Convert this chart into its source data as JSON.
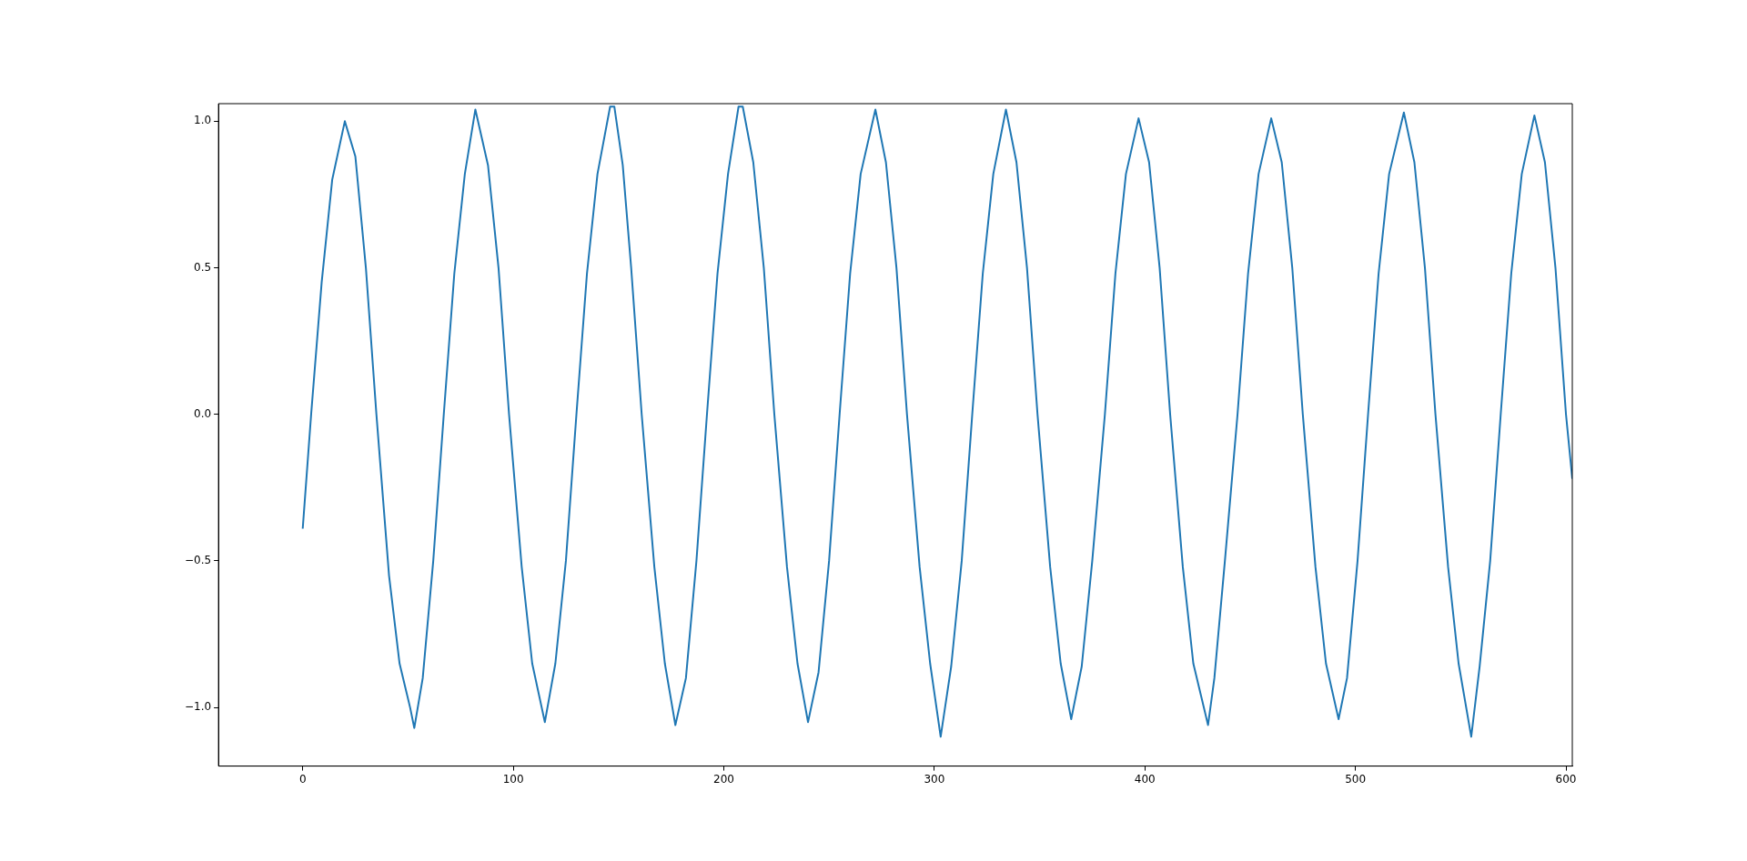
{
  "chart_data": {
    "type": "line",
    "x": [
      0,
      4,
      9,
      14,
      20,
      25,
      30,
      35,
      41,
      46,
      51,
      53,
      57,
      62,
      67,
      72,
      77,
      82,
      88,
      93,
      98,
      104,
      109,
      115,
      120,
      125,
      130,
      135,
      140,
      146,
      147,
      148,
      152,
      156,
      161,
      167,
      172,
      177,
      182,
      187,
      192,
      197,
      202,
      207,
      208,
      209,
      214,
      219,
      224,
      230,
      235,
      240,
      245,
      250,
      255,
      260,
      265,
      272,
      277,
      282,
      287,
      293,
      298,
      303,
      308,
      313,
      318,
      323,
      328,
      334,
      339,
      344,
      349,
      355,
      360,
      365,
      370,
      375,
      381,
      386,
      391,
      397,
      402,
      407,
      412,
      418,
      423,
      430,
      433,
      438,
      444,
      449,
      454,
      460,
      465,
      470,
      475,
      481,
      486,
      492,
      496,
      501,
      506,
      511,
      516,
      523,
      528,
      533,
      538,
      544,
      549,
      555,
      559,
      564,
      569,
      574,
      579,
      585,
      590,
      595,
      600,
      603
    ],
    "series": [
      {
        "color": "#1f77b4",
        "values": [
          -0.39,
          0.0,
          0.45,
          0.8,
          1.0,
          0.88,
          0.5,
          0.0,
          -0.55,
          -0.85,
          -1.0,
          -1.07,
          -0.9,
          -0.5,
          0.0,
          0.48,
          0.82,
          1.04,
          0.85,
          0.5,
          0.0,
          -0.52,
          -0.85,
          -1.05,
          -0.85,
          -0.5,
          0.0,
          0.48,
          0.82,
          1.05,
          null,
          1.05,
          0.85,
          0.5,
          0.0,
          -0.52,
          -0.85,
          -1.06,
          -0.9,
          -0.5,
          0.0,
          0.48,
          0.82,
          1.05,
          null,
          1.05,
          0.86,
          0.5,
          0.0,
          -0.52,
          -0.85,
          -1.05,
          -0.88,
          -0.5,
          0.0,
          0.48,
          0.82,
          1.04,
          0.86,
          0.5,
          0.0,
          -0.52,
          -0.85,
          -1.1,
          -0.86,
          -0.5,
          0.0,
          0.48,
          0.82,
          1.04,
          0.86,
          0.5,
          0.0,
          -0.52,
          -0.85,
          -1.04,
          -0.86,
          -0.5,
          0.0,
          0.48,
          0.82,
          1.01,
          0.86,
          0.5,
          0.0,
          -0.52,
          -0.85,
          -1.06,
          -0.9,
          -0.5,
          0.0,
          0.48,
          0.82,
          1.01,
          0.86,
          0.5,
          0.0,
          -0.52,
          -0.85,
          -1.04,
          -0.9,
          -0.5,
          0.0,
          0.48,
          0.82,
          1.03,
          0.86,
          0.5,
          0.0,
          -0.52,
          -0.85,
          -1.1,
          -0.86,
          -0.5,
          0.0,
          0.48,
          0.82,
          1.02,
          0.86,
          0.5,
          0.0,
          -0.22
        ]
      }
    ],
    "xlim": [
      -40,
      603
    ],
    "ylim": [
      -1.2,
      1.06
    ],
    "xticks": [
      0,
      100,
      200,
      300,
      400,
      500,
      600
    ],
    "yticks": [
      {
        "value": -1,
        "label": "−1.0"
      },
      {
        "value": -0.5,
        "label": "−0.5"
      },
      {
        "value": 0,
        "label": "0.0"
      },
      {
        "value": 0.5,
        "label": "0.5"
      },
      {
        "value": 1,
        "label": "1.0"
      }
    ],
    "grid": false,
    "legend": false,
    "marker": "none",
    "line_style": "solid"
  }
}
